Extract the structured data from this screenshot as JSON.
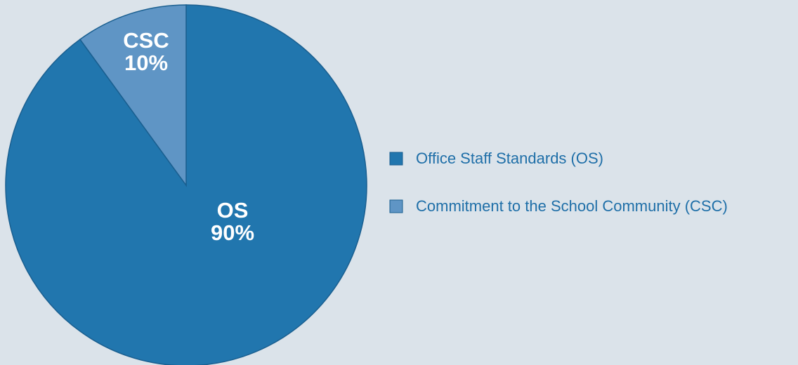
{
  "chart_data": {
    "type": "pie",
    "categories": [
      "Office Staff Standards (OS)",
      "Commitment to the School Community (CSC)"
    ],
    "short_labels": [
      "OS",
      "CSC"
    ],
    "values": [
      90,
      10
    ],
    "value_labels": [
      "90%",
      "10%"
    ],
    "colors": [
      "#2176ae",
      "#5f95c5"
    ],
    "legend": "right"
  }
}
